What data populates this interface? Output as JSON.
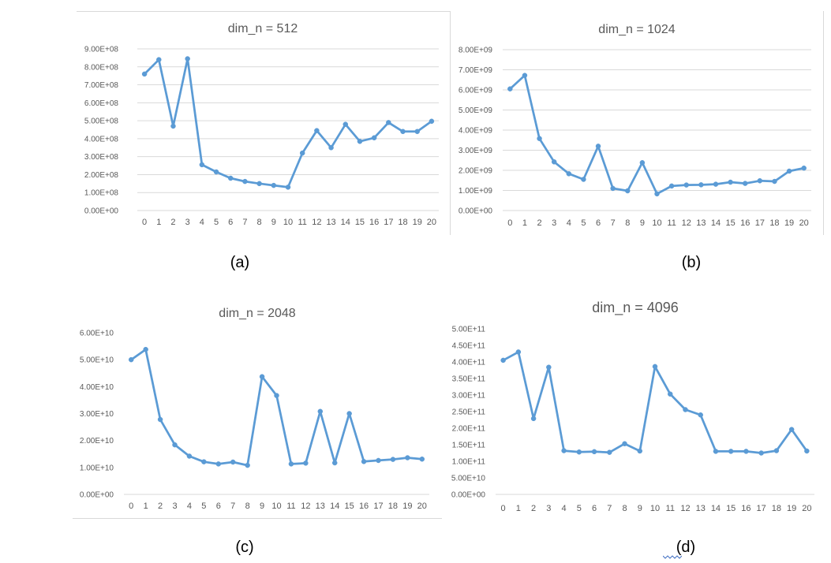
{
  "captions": [
    "(a)",
    "(b)",
    "(c)",
    "(d)"
  ],
  "chart_data": [
    {
      "type": "line",
      "title": "dim_n = 512",
      "categories": [
        "0",
        "1",
        "2",
        "3",
        "4",
        "5",
        "6",
        "7",
        "8",
        "9",
        "10",
        "11",
        "12",
        "13",
        "14",
        "15",
        "16",
        "17",
        "18",
        "19",
        "20"
      ],
      "values": [
        760000000,
        840000000,
        470000000,
        845000000,
        255000000,
        215000000,
        180000000,
        162000000,
        150000000,
        140000000,
        130000000,
        320000000,
        445000000,
        350000000,
        480000000,
        385000000,
        405000000,
        490000000,
        440000000,
        440000000,
        497000000
      ],
      "ylim": [
        0,
        900000000
      ],
      "yticks": [
        0,
        100000000,
        200000000,
        300000000,
        400000000,
        500000000,
        600000000,
        700000000,
        800000000,
        900000000
      ],
      "ytick_labels": [
        "0.00E+00",
        "1.00E+08",
        "2.00E+08",
        "3.00E+08",
        "4.00E+08",
        "5.00E+08",
        "6.00E+08",
        "7.00E+08",
        "8.00E+08",
        "9.00E+08"
      ],
      "grid": true,
      "color": "#5b9bd5"
    },
    {
      "type": "line",
      "title": "dim_n = 1024",
      "categories": [
        "0",
        "1",
        "2",
        "3",
        "4",
        "5",
        "6",
        "7",
        "8",
        "9",
        "10",
        "11",
        "12",
        "13",
        "14",
        "15",
        "16",
        "17",
        "18",
        "19",
        "20"
      ],
      "values": [
        6050000000,
        6720000000,
        3580000000,
        2420000000,
        1830000000,
        1550000000,
        3200000000,
        1100000000,
        980000000,
        2380000000,
        830000000,
        1220000000,
        1270000000,
        1280000000,
        1310000000,
        1410000000,
        1350000000,
        1480000000,
        1450000000,
        1960000000,
        2110000000
      ],
      "ylim": [
        0,
        8000000000
      ],
      "yticks": [
        0,
        1000000000,
        2000000000,
        3000000000,
        4000000000,
        5000000000,
        6000000000,
        7000000000,
        8000000000
      ],
      "ytick_labels": [
        "0.00E+00",
        "1.00E+09",
        "2.00E+09",
        "3.00E+09",
        "4.00E+09",
        "5.00E+09",
        "6.00E+09",
        "7.00E+09",
        "8.00E+09"
      ],
      "grid": true,
      "color": "#5b9bd5"
    },
    {
      "type": "line",
      "title": "dim_n = 2048",
      "categories": [
        "0",
        "1",
        "2",
        "3",
        "4",
        "5",
        "6",
        "7",
        "8",
        "9",
        "10",
        "11",
        "12",
        "13",
        "14",
        "15",
        "16",
        "17",
        "18",
        "19",
        "20"
      ],
      "values": [
        50000000000,
        53800000000,
        27800000000,
        18400000000,
        14200000000,
        12100000000,
        11300000000,
        12000000000,
        10800000000,
        43700000000,
        36700000000,
        11300000000,
        11600000000,
        30800000000,
        11700000000,
        30000000000,
        12200000000,
        12600000000,
        13000000000,
        13600000000,
        13100000000
      ],
      "ylim": [
        0,
        60000000000
      ],
      "yticks": [
        0,
        10000000000,
        20000000000,
        30000000000,
        40000000000,
        50000000000,
        60000000000
      ],
      "ytick_labels": [
        "0.00E+00",
        "1.00E+10",
        "2.00E+10",
        "3.00E+10",
        "4.00E+10",
        "5.00E+10",
        "6.00E+10"
      ],
      "grid": false,
      "color": "#5b9bd5"
    },
    {
      "type": "line",
      "title": "dim_n = 4096",
      "categories": [
        "0",
        "1",
        "2",
        "3",
        "4",
        "5",
        "6",
        "7",
        "8",
        "9",
        "10",
        "11",
        "12",
        "13",
        "14",
        "15",
        "16",
        "17",
        "18",
        "19",
        "20"
      ],
      "values": [
        405000000000,
        430000000000,
        229000000000,
        384000000000,
        132000000000,
        128000000000,
        129000000000,
        127000000000,
        153000000000,
        131000000000,
        386000000000,
        303000000000,
        256000000000,
        240000000000,
        130000000000,
        130000000000,
        130000000000,
        125000000000,
        132000000000,
        196000000000,
        131000000000
      ],
      "ylim": [
        0,
        500000000000
      ],
      "yticks": [
        0,
        50000000000,
        100000000000,
        150000000000,
        200000000000,
        250000000000,
        300000000000,
        350000000000,
        400000000000,
        450000000000,
        500000000000
      ],
      "ytick_labels": [
        "0.00E+00",
        "5.00E+10",
        "1.00E+11",
        "1.50E+11",
        "2.00E+11",
        "2.50E+11",
        "3.00E+11",
        "3.50E+11",
        "4.00E+11",
        "4.50E+11",
        "5.00E+11"
      ],
      "grid": false,
      "color": "#5b9bd5"
    }
  ]
}
